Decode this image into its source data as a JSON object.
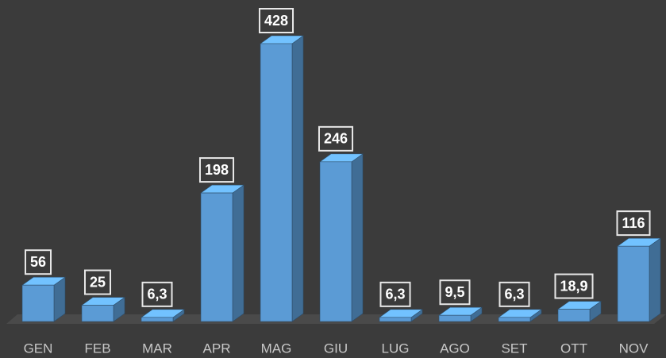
{
  "chart_data": {
    "type": "bar3d",
    "categories": [
      "GEN",
      "FEB",
      "MAR",
      "APR",
      "MAG",
      "GIU",
      "LUG",
      "AGO",
      "SET",
      "OTT",
      "NOV"
    ],
    "values": [
      56,
      25,
      6.3,
      198,
      428,
      246,
      6.3,
      9.5,
      6.3,
      18.9,
      116
    ],
    "value_labels": [
      "56",
      "25",
      "6,3",
      "198",
      "428",
      "246",
      "6,3",
      "9,5",
      "6,3",
      "18,9",
      "116"
    ],
    "color": "#5b9bd5"
  }
}
